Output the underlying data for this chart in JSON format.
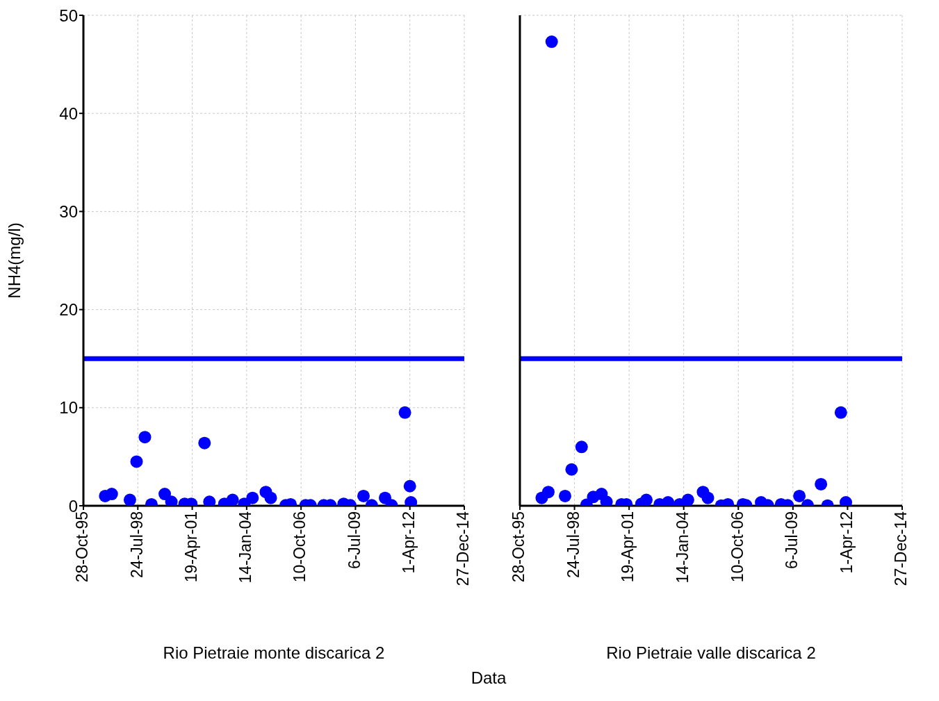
{
  "chart_data": [
    {
      "type": "scatter",
      "xlabel": "Rio Pietraie monte discarica 2",
      "ylabel": "NH4(mg/l)",
      "annotations": [
        "Data"
      ],
      "color": "#0000ff",
      "marker": "circle",
      "grid": true,
      "x": [
        "1996-12",
        "1997-04",
        "1998-03",
        "1998-07",
        "1998-12",
        "1999-04",
        "1999-12",
        "2000-04",
        "2000-12",
        "2001-04",
        "2001-12",
        "2002-03",
        "2002-12",
        "2003-05",
        "2003-12",
        "2004-05",
        "2005-01",
        "2005-04",
        "2006-01",
        "2006-04",
        "2007-01",
        "2007-04",
        "2007-12",
        "2008-04",
        "2008-12",
        "2009-04",
        "2009-12",
        "2010-05",
        "2011-01",
        "2011-05",
        "2012-01",
        "2012-04",
        "2012-04-20"
      ],
      "values": [
        1.0,
        1.2,
        0.6,
        4.5,
        7.0,
        0.15,
        1.2,
        0.4,
        0.2,
        0.2,
        6.4,
        0.4,
        0.2,
        0.6,
        0.2,
        0.8,
        1.4,
        0.8,
        0.05,
        0.15,
        0.05,
        0.05,
        0.05,
        0.05,
        0.2,
        0.05,
        1.0,
        0.05,
        0.8,
        0.05,
        9.5,
        2.0,
        0.35
      ],
      "xlim": [
        "1995-10-28",
        "2014-12-27"
      ],
      "xticks": [
        {
          "value": "1995-10-28",
          "label": "28-Oct-95"
        },
        {
          "value": "1998-07-24",
          "label": "24-Jul-98"
        },
        {
          "value": "2001-04-19",
          "label": "19-Apr-01"
        },
        {
          "value": "2004-01-14",
          "label": "14-Jan-04"
        },
        {
          "value": "2006-10-10",
          "label": "10-Oct-06"
        },
        {
          "value": "2009-07-06",
          "label": "6-Jul-09"
        },
        {
          "value": "2012-04-01",
          "label": "1-Apr-12"
        },
        {
          "value": "2014-12-27",
          "label": "27-Dec-14"
        }
      ],
      "ylim": [
        0,
        50
      ],
      "yticks": [
        0,
        10,
        20,
        30,
        40,
        50
      ],
      "ref_lines": [
        {
          "axis": "y",
          "value": 15,
          "color": "#0000ff"
        }
      ]
    },
    {
      "type": "scatter",
      "xlabel": "Rio Pietraie valle discarica 2",
      "color": "#0000ff",
      "marker": "circle",
      "grid": true,
      "tick_labels": "x",
      "x": [
        "1996-12",
        "1997-04",
        "1997-06",
        "1998-02",
        "1998-06",
        "1998-12",
        "1999-03",
        "1999-07",
        "1999-12",
        "2000-03",
        "2000-12",
        "2001-03",
        "2001-12",
        "2002-03",
        "2002-11",
        "2003-04",
        "2003-11",
        "2004-04",
        "2005-01",
        "2005-04",
        "2005-12",
        "2006-04",
        "2007-01",
        "2007-03",
        "2007-12",
        "2008-04",
        "2008-12",
        "2009-04",
        "2009-11",
        "2010-04",
        "2010-12",
        "2011-04",
        "2011-12",
        "2012-03"
      ],
      "values": [
        0.8,
        1.4,
        47.3,
        1.0,
        3.7,
        6.0,
        0.1,
        0.9,
        1.2,
        0.4,
        0.15,
        0.15,
        0.2,
        0.6,
        0.15,
        0.35,
        0.15,
        0.6,
        1.4,
        0.8,
        0.02,
        0.15,
        0.15,
        0.05,
        0.35,
        0.05,
        0.15,
        0.05,
        1.0,
        0.05,
        2.2,
        0.02,
        9.5,
        0.35
      ],
      "xlim": [
        "1995-10-28",
        "2014-12-27"
      ],
      "xticks": [
        {
          "value": "1995-10-28",
          "label": "28-Oct-95"
        },
        {
          "value": "1998-07-24",
          "label": "24-Jul-98"
        },
        {
          "value": "2001-04-19",
          "label": "19-Apr-01"
        },
        {
          "value": "2004-01-14",
          "label": "14-Jan-04"
        },
        {
          "value": "2006-10-10",
          "label": "10-Oct-06"
        },
        {
          "value": "2009-07-06",
          "label": "6-Jul-09"
        },
        {
          "value": "2012-04-01",
          "label": "1-Apr-12"
        },
        {
          "value": "2014-12-27",
          "label": "27-Dec-14"
        }
      ],
      "ylim": [
        0,
        50
      ],
      "yticks": [
        0,
        10,
        20,
        30,
        40,
        50
      ],
      "ref_lines": [
        {
          "axis": "y",
          "value": 15,
          "color": "#0000ff"
        }
      ]
    }
  ]
}
